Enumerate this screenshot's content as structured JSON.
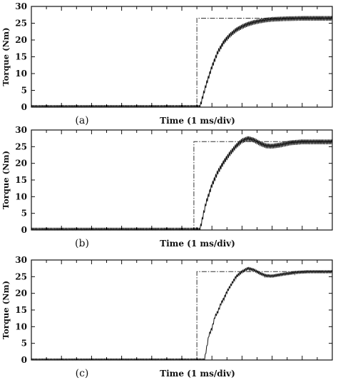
{
  "chart_data": [
    {
      "type": "line",
      "panel_label": "(a)",
      "xlabel": "Time (1 ms/div)",
      "ylabel": "Torque (Nm)",
      "ylim": [
        0,
        30
      ],
      "yticks": [
        "0",
        "5",
        "10",
        "15",
        "20",
        "25",
        "30"
      ],
      "x_divisions": 10,
      "grid": false,
      "series": [
        {
          "role": "reference",
          "style": "dash-dot",
          "x": [
            0,
            5.5,
            5.5,
            10
          ],
          "y": [
            0,
            0,
            26.5,
            26.5
          ]
        },
        {
          "role": "response",
          "style": "solid",
          "ripple_amplitude": 0.75,
          "x": [
            0,
            5.5,
            5.6,
            5.8,
            6.0,
            6.2,
            6.4,
            6.6,
            6.8,
            7.0,
            7.2,
            7.4,
            7.6,
            7.8,
            8.0,
            8.5,
            9.0,
            9.5,
            10.0
          ],
          "y": [
            0,
            0,
            0,
            6.5,
            12,
            16.5,
            19.5,
            21.5,
            23,
            24,
            24.8,
            25.3,
            25.7,
            26,
            26.2,
            26.4,
            26.5,
            26.5,
            26.5
          ]
        }
      ]
    },
    {
      "type": "line",
      "panel_label": "(b)",
      "xlabel": "Time (1 ms/div)",
      "ylabel": "Torque (Nm)",
      "ylim": [
        0,
        30
      ],
      "yticks": [
        "0",
        "5",
        "10",
        "15",
        "20",
        "25",
        "30"
      ],
      "x_divisions": 10,
      "grid": false,
      "series": [
        {
          "role": "reference",
          "style": "dash-dot",
          "x": [
            0,
            5.4,
            5.4,
            10
          ],
          "y": [
            0,
            0,
            26.5,
            26.5
          ]
        },
        {
          "role": "response",
          "style": "solid",
          "ripple_amplitude": 0.8,
          "x": [
            0,
            5.5,
            5.6,
            5.8,
            6.0,
            6.2,
            6.4,
            6.6,
            6.8,
            7.0,
            7.2,
            7.4,
            7.6,
            7.8,
            8.0,
            8.3,
            8.6,
            9.0,
            9.5,
            10.0
          ],
          "y": [
            0,
            0,
            0,
            8,
            13.5,
            17.5,
            20.5,
            23,
            25.2,
            26.8,
            27.5,
            27,
            26,
            25.3,
            25.2,
            25.6,
            26.2,
            26.5,
            26.5,
            26.5
          ]
        }
      ]
    },
    {
      "type": "line",
      "panel_label": "(c)",
      "xlabel": "Time (1 ms/div)",
      "ylabel": "Torque (Nm)",
      "ylim": [
        0,
        30
      ],
      "yticks": [
        "0",
        "5",
        "10",
        "15",
        "20",
        "25",
        "30"
      ],
      "x_divisions": 10,
      "grid": false,
      "series": [
        {
          "role": "reference",
          "style": "dash-dot",
          "x": [
            0,
            5.5,
            5.5,
            10
          ],
          "y": [
            0,
            0,
            26.5,
            26.5
          ]
        },
        {
          "role": "response",
          "style": "solid",
          "ripple_amplitude": 0.5,
          "x": [
            0,
            5.7,
            5.75,
            5.9,
            6.0,
            6.1,
            6.2,
            6.3,
            6.4,
            6.5,
            6.6,
            6.8,
            7.0,
            7.2,
            7.4,
            7.6,
            7.8,
            8.0,
            8.4,
            8.8,
            9.2,
            10.0
          ],
          "y": [
            0,
            0,
            0,
            7.5,
            9.5,
            13,
            14.5,
            17,
            18.5,
            20.5,
            22,
            25,
            26.5,
            27.5,
            27,
            26,
            25.3,
            25.2,
            25.8,
            26.3,
            26.5,
            26.5
          ]
        }
      ]
    }
  ]
}
